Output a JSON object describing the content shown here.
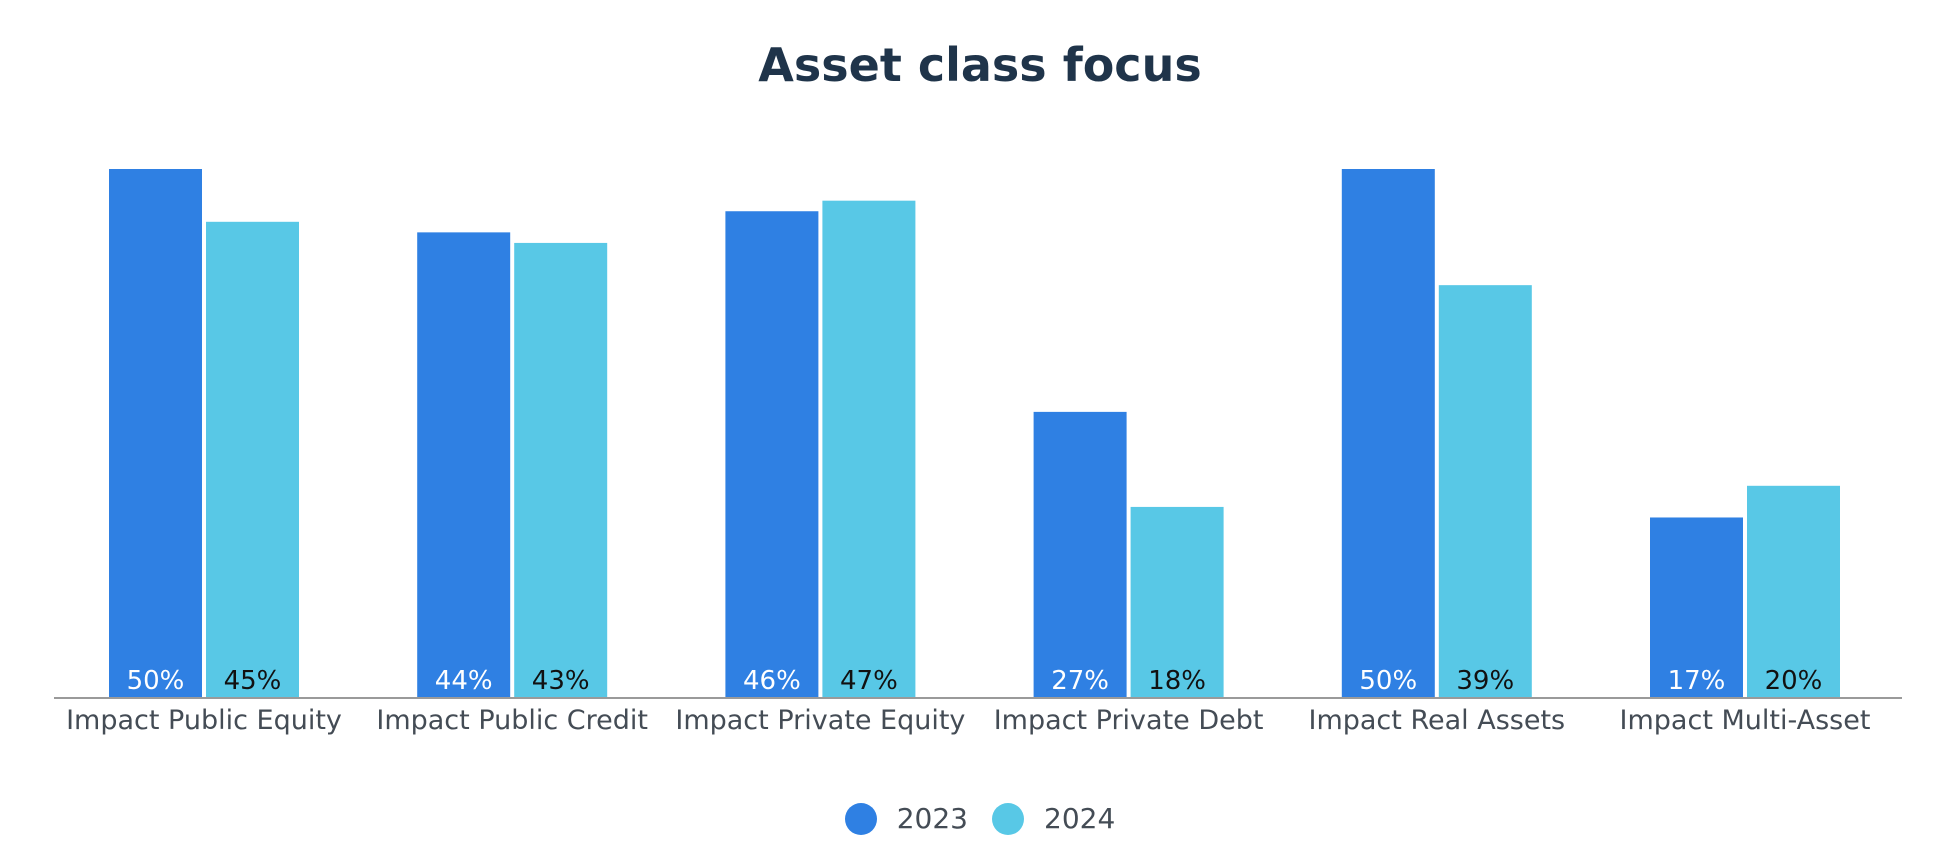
{
  "colors": {
    "series_2023": "#2f80e3",
    "series_2024": "#58c8e6",
    "label_on_2023": "#ffffff",
    "label_on_2024": "#111111",
    "axis": "#9a9a9a",
    "category_text": "#444c55",
    "title": "#1f344a"
  },
  "chart_data": {
    "type": "bar",
    "title": "Asset class focus",
    "xlabel": "",
    "ylabel": "",
    "ylim": [
      0,
      50
    ],
    "grid": false,
    "legend_position": "bottom-center",
    "categories": [
      "Impact Public Equity",
      "Impact Public Credit",
      "Impact Private Equity",
      "Impact Private Debt",
      "Impact Real Assets",
      "Impact Multi-Asset"
    ],
    "series": [
      {
        "name": "2023",
        "values": [
          50,
          44,
          46,
          27,
          50,
          17
        ],
        "labels": [
          "50%",
          "44%",
          "46%",
          "27%",
          "50%",
          "17%"
        ]
      },
      {
        "name": "2024",
        "values": [
          45,
          43,
          47,
          18,
          39,
          20
        ],
        "labels": [
          "45%",
          "43%",
          "47%",
          "18%",
          "39%",
          "20%"
        ]
      }
    ]
  }
}
